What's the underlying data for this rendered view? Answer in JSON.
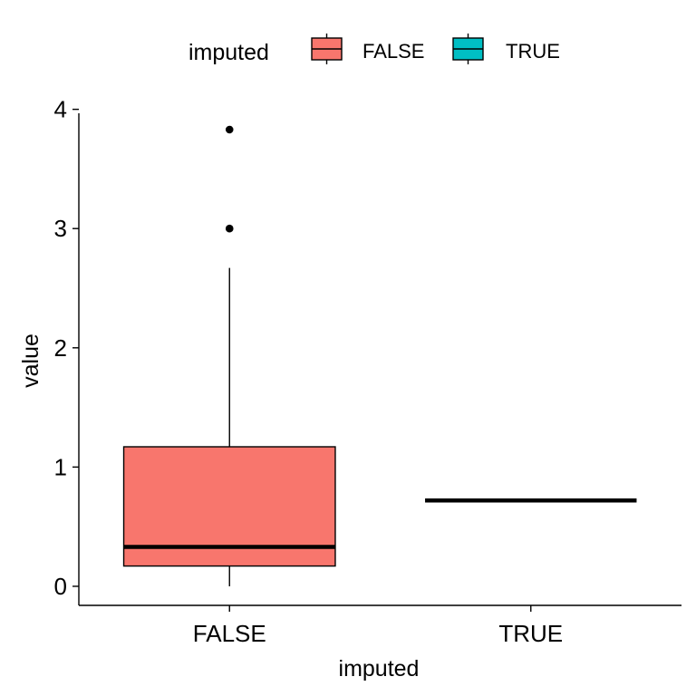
{
  "legend": {
    "title": "imputed",
    "entries": [
      {
        "label": "FALSE",
        "color": "#F8766D"
      },
      {
        "label": "TRUE",
        "color": "#00BFC4"
      }
    ]
  },
  "chart_data": {
    "type": "boxplot",
    "xlabel": "imputed",
    "ylabel": "value",
    "categories": [
      "FALSE",
      "TRUE"
    ],
    "ylim": [
      -0.16,
      4.02
    ],
    "yticks": [
      0,
      1,
      2,
      3,
      4
    ],
    "grid": false,
    "legend_position": "top",
    "boxes": [
      {
        "category": "FALSE",
        "color": "#F8766D",
        "whisker_low": 0.0,
        "q1": 0.17,
        "median": 0.33,
        "q3": 1.17,
        "whisker_high": 2.67,
        "outliers": [
          3.0,
          3.83
        ]
      },
      {
        "category": "TRUE",
        "color": "#00BFC4",
        "whisker_low": 0.72,
        "q1": 0.72,
        "median": 0.72,
        "q3": 0.72,
        "whisker_high": 0.72,
        "outliers": []
      }
    ]
  }
}
